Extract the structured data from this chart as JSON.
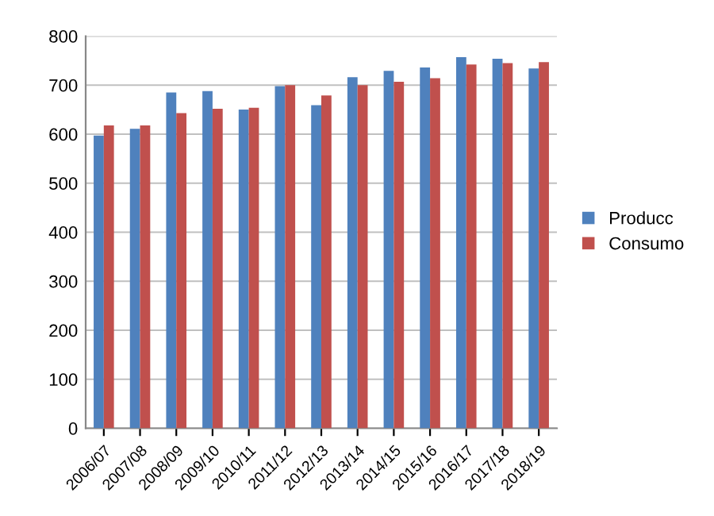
{
  "chart_data": {
    "type": "bar",
    "categories": [
      "2006/07",
      "2007/08",
      "2008/09",
      "2009/10",
      "2010/11",
      "2011/12",
      "2012/13",
      "2013/14",
      "2014/15",
      "2015/16",
      "2016/17",
      "2017/18",
      "2018/19"
    ],
    "series": [
      {
        "name": "Producc",
        "color": "#4f81bd",
        "values": [
          597,
          611,
          685,
          688,
          650,
          698,
          659,
          716,
          729,
          736,
          757,
          754,
          734
        ]
      },
      {
        "name": "Consumo",
        "color": "#c0504d",
        "values": [
          618,
          618,
          643,
          652,
          654,
          700,
          679,
          700,
          707,
          714,
          742,
          745,
          747
        ]
      }
    ],
    "ylim": [
      0,
      800
    ],
    "yticks": [
      0,
      100,
      200,
      300,
      400,
      500,
      600,
      700,
      800
    ],
    "grid": "y",
    "legend": "right"
  }
}
